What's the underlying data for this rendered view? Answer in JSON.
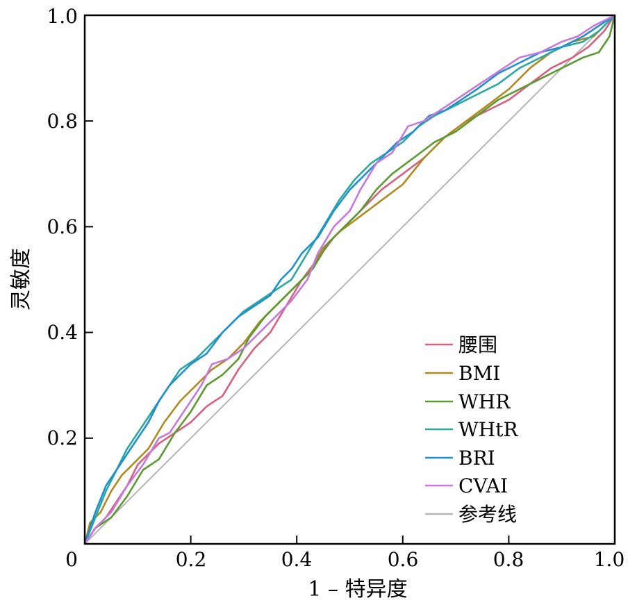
{
  "chart_data": {
    "type": "line",
    "title": "",
    "xlabel": "1 – 特异度",
    "ylabel": "灵敏度",
    "xlim": [
      0,
      1
    ],
    "ylim": [
      0,
      1
    ],
    "x_ticks": [
      "0",
      "0.2",
      "0.4",
      "0.6",
      "0.8",
      "1.0"
    ],
    "y_ticks": [
      "0.2",
      "0.4",
      "0.6",
      "0.8",
      "1.0"
    ],
    "grid": false,
    "legend_position": "bottom-right",
    "series": [
      {
        "name": "腰围",
        "color": "#d95f7f",
        "points": [
          [
            0,
            0
          ],
          [
            0.02,
            0.03
          ],
          [
            0.04,
            0.05
          ],
          [
            0.06,
            0.08
          ],
          [
            0.08,
            0.11
          ],
          [
            0.1,
            0.15
          ],
          [
            0.12,
            0.17
          ],
          [
            0.14,
            0.19
          ],
          [
            0.17,
            0.21
          ],
          [
            0.2,
            0.23
          ],
          [
            0.23,
            0.26
          ],
          [
            0.26,
            0.28
          ],
          [
            0.29,
            0.33
          ],
          [
            0.32,
            0.37
          ],
          [
            0.35,
            0.4
          ],
          [
            0.38,
            0.45
          ],
          [
            0.41,
            0.5
          ],
          [
            0.44,
            0.54
          ],
          [
            0.47,
            0.58
          ],
          [
            0.5,
            0.61
          ],
          [
            0.53,
            0.64
          ],
          [
            0.56,
            0.67
          ],
          [
            0.6,
            0.7
          ],
          [
            0.64,
            0.73
          ],
          [
            0.68,
            0.77
          ],
          [
            0.72,
            0.8
          ],
          [
            0.76,
            0.82
          ],
          [
            0.8,
            0.84
          ],
          [
            0.84,
            0.87
          ],
          [
            0.88,
            0.9
          ],
          [
            0.92,
            0.92
          ],
          [
            0.95,
            0.94
          ],
          [
            0.98,
            0.97
          ],
          [
            1,
            1
          ]
        ]
      },
      {
        "name": "BMI",
        "color": "#b08a1e",
        "points": [
          [
            0,
            0
          ],
          [
            0.01,
            0.04
          ],
          [
            0.03,
            0.06
          ],
          [
            0.05,
            0.1
          ],
          [
            0.07,
            0.13
          ],
          [
            0.09,
            0.15
          ],
          [
            0.12,
            0.18
          ],
          [
            0.15,
            0.23
          ],
          [
            0.18,
            0.27
          ],
          [
            0.21,
            0.3
          ],
          [
            0.24,
            0.33
          ],
          [
            0.27,
            0.35
          ],
          [
            0.3,
            0.38
          ],
          [
            0.33,
            0.42
          ],
          [
            0.36,
            0.45
          ],
          [
            0.39,
            0.48
          ],
          [
            0.42,
            0.51
          ],
          [
            0.45,
            0.56
          ],
          [
            0.48,
            0.59
          ],
          [
            0.52,
            0.62
          ],
          [
            0.56,
            0.65
          ],
          [
            0.6,
            0.68
          ],
          [
            0.64,
            0.73
          ],
          [
            0.68,
            0.77
          ],
          [
            0.72,
            0.8
          ],
          [
            0.76,
            0.83
          ],
          [
            0.8,
            0.86
          ],
          [
            0.84,
            0.9
          ],
          [
            0.88,
            0.93
          ],
          [
            0.92,
            0.95
          ],
          [
            0.96,
            0.96
          ],
          [
            0.99,
            0.99
          ],
          [
            1,
            1
          ]
        ]
      },
      {
        "name": "WHR",
        "color": "#5a9a2e",
        "points": [
          [
            0,
            0
          ],
          [
            0.02,
            0.03
          ],
          [
            0.05,
            0.05
          ],
          [
            0.08,
            0.09
          ],
          [
            0.11,
            0.14
          ],
          [
            0.14,
            0.16
          ],
          [
            0.17,
            0.21
          ],
          [
            0.2,
            0.25
          ],
          [
            0.23,
            0.3
          ],
          [
            0.26,
            0.32
          ],
          [
            0.29,
            0.35
          ],
          [
            0.31,
            0.39
          ],
          [
            0.34,
            0.43
          ],
          [
            0.37,
            0.46
          ],
          [
            0.4,
            0.49
          ],
          [
            0.43,
            0.52
          ],
          [
            0.46,
            0.57
          ],
          [
            0.49,
            0.6
          ],
          [
            0.52,
            0.63
          ],
          [
            0.55,
            0.67
          ],
          [
            0.58,
            0.7
          ],
          [
            0.62,
            0.73
          ],
          [
            0.66,
            0.76
          ],
          [
            0.7,
            0.78
          ],
          [
            0.74,
            0.81
          ],
          [
            0.78,
            0.84
          ],
          [
            0.82,
            0.86
          ],
          [
            0.86,
            0.88
          ],
          [
            0.9,
            0.9
          ],
          [
            0.94,
            0.92
          ],
          [
            0.97,
            0.93
          ],
          [
            0.99,
            0.96
          ],
          [
            1,
            1
          ]
        ]
      },
      {
        "name": "WHtR",
        "color": "#2aa8a0",
        "points": [
          [
            0,
            0
          ],
          [
            0.02,
            0.05
          ],
          [
            0.04,
            0.1
          ],
          [
            0.06,
            0.14
          ],
          [
            0.08,
            0.18
          ],
          [
            0.1,
            0.21
          ],
          [
            0.12,
            0.24
          ],
          [
            0.14,
            0.27
          ],
          [
            0.16,
            0.3
          ],
          [
            0.18,
            0.33
          ],
          [
            0.21,
            0.35
          ],
          [
            0.24,
            0.38
          ],
          [
            0.27,
            0.41
          ],
          [
            0.3,
            0.44
          ],
          [
            0.33,
            0.46
          ],
          [
            0.36,
            0.48
          ],
          [
            0.39,
            0.5
          ],
          [
            0.42,
            0.55
          ],
          [
            0.45,
            0.6
          ],
          [
            0.48,
            0.65
          ],
          [
            0.51,
            0.69
          ],
          [
            0.54,
            0.72
          ],
          [
            0.57,
            0.74
          ],
          [
            0.6,
            0.76
          ],
          [
            0.63,
            0.79
          ],
          [
            0.66,
            0.81
          ],
          [
            0.7,
            0.83
          ],
          [
            0.74,
            0.85
          ],
          [
            0.78,
            0.87
          ],
          [
            0.82,
            0.9
          ],
          [
            0.86,
            0.92
          ],
          [
            0.9,
            0.94
          ],
          [
            0.94,
            0.95
          ],
          [
            0.97,
            0.97
          ],
          [
            1,
            1
          ]
        ]
      },
      {
        "name": "BRI",
        "color": "#1f8fd0",
        "points": [
          [
            0,
            0
          ],
          [
            0.02,
            0.06
          ],
          [
            0.04,
            0.11
          ],
          [
            0.06,
            0.14
          ],
          [
            0.08,
            0.17
          ],
          [
            0.1,
            0.2
          ],
          [
            0.12,
            0.23
          ],
          [
            0.14,
            0.27
          ],
          [
            0.16,
            0.3
          ],
          [
            0.18,
            0.32
          ],
          [
            0.2,
            0.34
          ],
          [
            0.23,
            0.36
          ],
          [
            0.26,
            0.4
          ],
          [
            0.29,
            0.43
          ],
          [
            0.32,
            0.45
          ],
          [
            0.35,
            0.47
          ],
          [
            0.37,
            0.5
          ],
          [
            0.39,
            0.52
          ],
          [
            0.41,
            0.55
          ],
          [
            0.44,
            0.58
          ],
          [
            0.47,
            0.63
          ],
          [
            0.5,
            0.67
          ],
          [
            0.53,
            0.7
          ],
          [
            0.56,
            0.73
          ],
          [
            0.59,
            0.76
          ],
          [
            0.62,
            0.78
          ],
          [
            0.65,
            0.81
          ],
          [
            0.68,
            0.82
          ],
          [
            0.71,
            0.84
          ],
          [
            0.74,
            0.86
          ],
          [
            0.78,
            0.89
          ],
          [
            0.82,
            0.91
          ],
          [
            0.86,
            0.93
          ],
          [
            0.9,
            0.94
          ],
          [
            0.94,
            0.96
          ],
          [
            0.97,
            0.98
          ],
          [
            1,
            1
          ]
        ]
      },
      {
        "name": "CVAI",
        "color": "#c777e0",
        "points": [
          [
            0,
            0
          ],
          [
            0.02,
            0.03
          ],
          [
            0.05,
            0.06
          ],
          [
            0.08,
            0.11
          ],
          [
            0.11,
            0.15
          ],
          [
            0.14,
            0.2
          ],
          [
            0.16,
            0.21
          ],
          [
            0.18,
            0.24
          ],
          [
            0.2,
            0.27
          ],
          [
            0.22,
            0.3
          ],
          [
            0.24,
            0.34
          ],
          [
            0.27,
            0.35
          ],
          [
            0.3,
            0.37
          ],
          [
            0.33,
            0.4
          ],
          [
            0.36,
            0.43
          ],
          [
            0.39,
            0.46
          ],
          [
            0.42,
            0.5
          ],
          [
            0.44,
            0.55
          ],
          [
            0.47,
            0.6
          ],
          [
            0.5,
            0.63
          ],
          [
            0.52,
            0.67
          ],
          [
            0.55,
            0.72
          ],
          [
            0.58,
            0.74
          ],
          [
            0.61,
            0.79
          ],
          [
            0.64,
            0.8
          ],
          [
            0.67,
            0.82
          ],
          [
            0.7,
            0.84
          ],
          [
            0.73,
            0.86
          ],
          [
            0.76,
            0.88
          ],
          [
            0.79,
            0.9
          ],
          [
            0.82,
            0.92
          ],
          [
            0.86,
            0.93
          ],
          [
            0.9,
            0.95
          ],
          [
            0.93,
            0.96
          ],
          [
            0.96,
            0.98
          ],
          [
            1,
            1
          ]
        ]
      },
      {
        "name": "参考线",
        "color": "#b5b5b5",
        "points": [
          [
            0,
            0
          ],
          [
            1,
            1
          ]
        ]
      }
    ]
  }
}
